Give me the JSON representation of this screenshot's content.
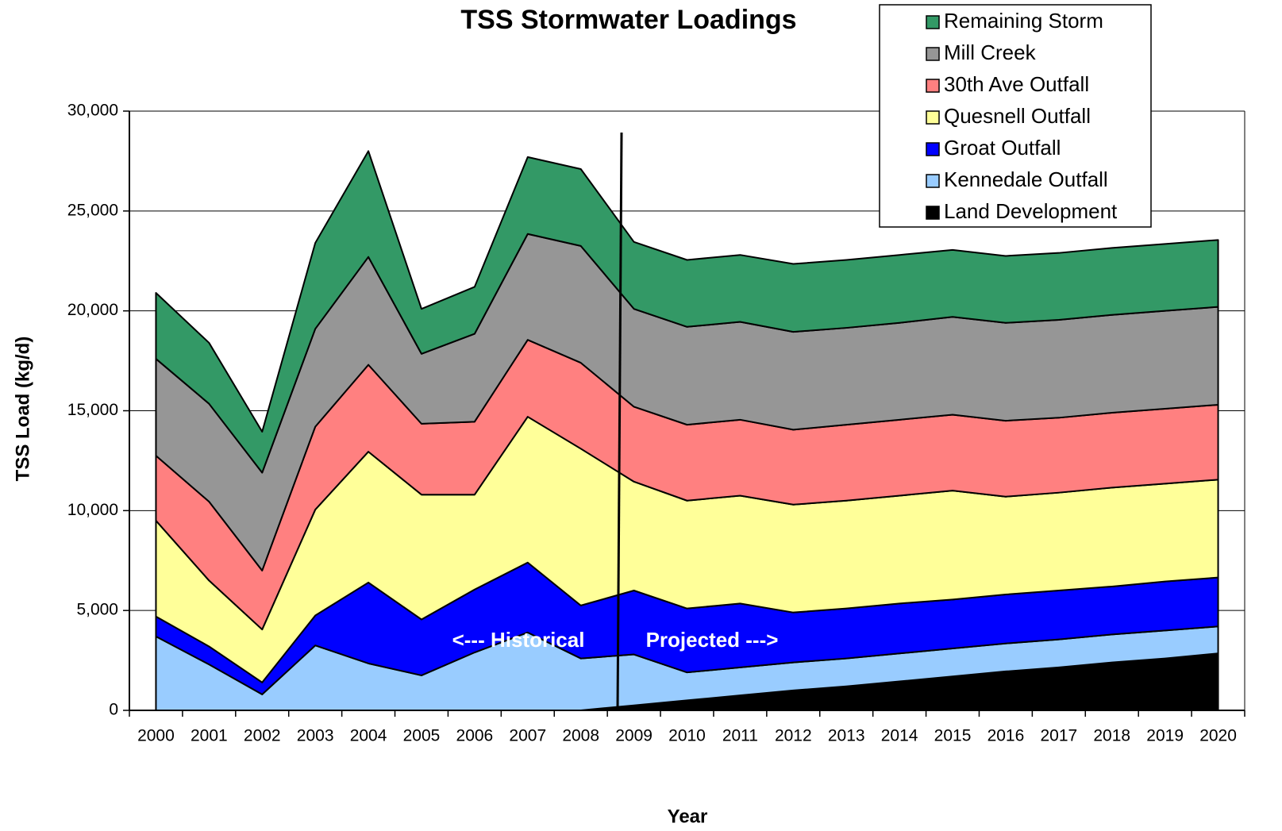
{
  "chart_data": {
    "type": "stacked_area",
    "title": "TSS Stormwater Loadings",
    "x_label": "Year",
    "y_label": "TSS Load (kg/d)",
    "annotations": [
      "<--- Historical",
      "Projected --->"
    ],
    "categories": [
      "2000",
      "2001",
      "2002",
      "2003",
      "2004",
      "2005",
      "2006",
      "2007",
      "2008",
      "2009",
      "2010",
      "2011",
      "2012",
      "2013",
      "2014",
      "2015",
      "2016",
      "2017",
      "2018",
      "2019",
      "2020"
    ],
    "series": [
      {
        "name": "Land Development",
        "color": "#000000",
        "values": [
          0,
          0,
          0,
          0,
          0,
          0,
          0,
          0,
          0,
          250,
          500,
          750,
          1000,
          1200,
          1450,
          1700,
          1950,
          2150,
          2400,
          2600,
          2850
        ]
      },
      {
        "name": "Kennedale Outfall",
        "color": "#99CCFF",
        "values": [
          3700,
          2300,
          800,
          3250,
          2350,
          1750,
          2900,
          3900,
          2600,
          2550,
          1400,
          1400,
          1400,
          1400,
          1400,
          1400,
          1400,
          1400,
          1400,
          1400,
          1350
        ]
      },
      {
        "name": "Groat Outfall",
        "color": "#0000FF",
        "values": [
          1000,
          900,
          600,
          1500,
          4050,
          2800,
          3150,
          3500,
          2650,
          3200,
          3200,
          3200,
          2500,
          2500,
          2500,
          2450,
          2450,
          2450,
          2400,
          2450,
          2450
        ]
      },
      {
        "name": "Quesnell Outfall",
        "color": "#FFFF99",
        "values": [
          4800,
          3300,
          2650,
          5300,
          6550,
          6250,
          4750,
          7300,
          7850,
          5450,
          5400,
          5400,
          5400,
          5400,
          5400,
          5450,
          4900,
          4900,
          4950,
          4900,
          4900
        ]
      },
      {
        "name": "30th Ave Outfall",
        "color": "#FF8080",
        "values": [
          3250,
          3950,
          2950,
          4150,
          4350,
          3550,
          3650,
          3850,
          4300,
          3750,
          3800,
          3800,
          3750,
          3800,
          3800,
          3800,
          3800,
          3750,
          3750,
          3750,
          3750
        ]
      },
      {
        "name": "Mill Creek",
        "color": "#969696",
        "values": [
          4850,
          4900,
          4900,
          4900,
          5400,
          3500,
          4400,
          5300,
          5850,
          4900,
          4900,
          4900,
          4900,
          4850,
          4850,
          4900,
          4900,
          4900,
          4900,
          4900,
          4900
        ]
      },
      {
        "name": "Remaining Storm",
        "color": "#339966",
        "values": [
          3300,
          3050,
          2050,
          4300,
          5300,
          2250,
          2350,
          3850,
          3850,
          3350,
          3350,
          3350,
          3400,
          3400,
          3400,
          3350,
          3350,
          3350,
          3350,
          3350,
          3350
        ]
      }
    ],
    "ylim": [
      0,
      30000
    ],
    "yticks": [
      0,
      {
        "value": 5000,
        "label": "5,000"
      },
      {
        "value": 10000,
        "label": "10,000"
      },
      {
        "value": 15000,
        "label": "15,000"
      },
      {
        "value": 20000,
        "label": "20,000"
      },
      {
        "value": 25000,
        "label": "25,000"
      },
      {
        "value": 30000,
        "label": "30,000"
      }
    ],
    "grid": true,
    "legend": "top-right"
  }
}
